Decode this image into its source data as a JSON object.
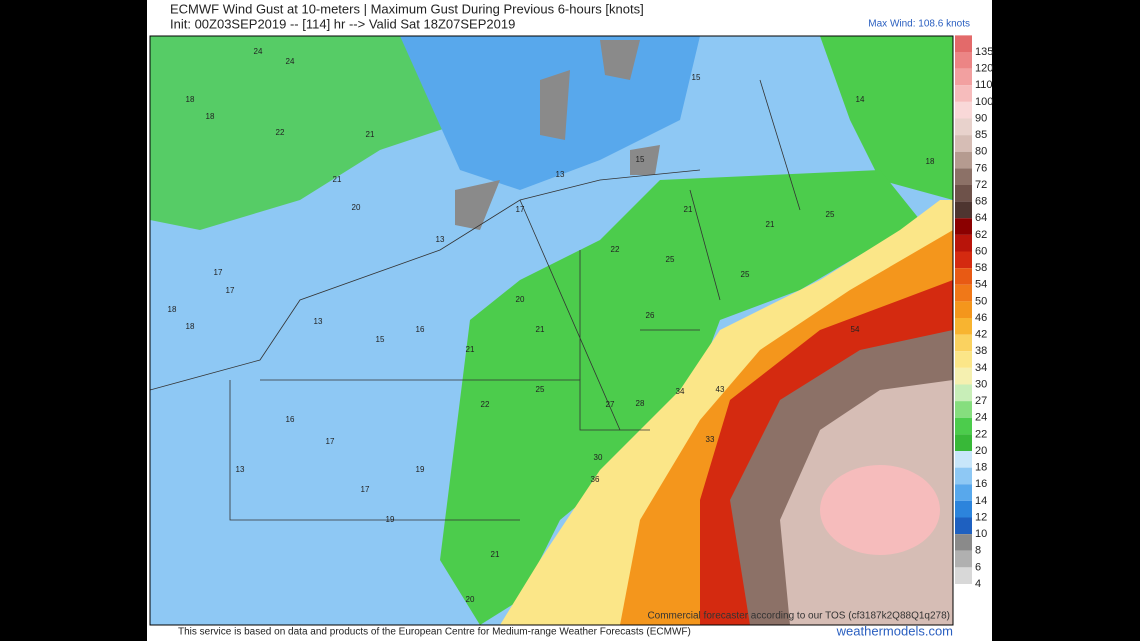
{
  "header": {
    "title": "ECMWF Wind Gust at 10-meters | Maximum Gust During Previous 6-hours [knots]",
    "init": "Init: 00Z03SEP2019 -- [114] hr --> Valid Sat 18Z07SEP2019",
    "max_wind": "Max Wind: 108.6 knots"
  },
  "colorbar": {
    "labels": [
      135,
      120,
      110,
      100,
      90,
      85,
      80,
      76,
      72,
      68,
      64,
      62,
      60,
      58,
      54,
      50,
      46,
      42,
      38,
      34,
      30,
      27,
      24,
      22,
      20,
      18,
      16,
      14,
      12,
      10,
      8,
      6,
      4
    ],
    "colors": [
      "#e36a6a",
      "#ec8585",
      "#f2a0a0",
      "#f6bcbc",
      "#f9d8d8",
      "#e8d2cc",
      "#d6bdb5",
      "#b59b90",
      "#8c7167",
      "#6e524a",
      "#4e3530",
      "#8b0000",
      "#b8140a",
      "#d42a10",
      "#e85a14",
      "#f07818",
      "#f4961c",
      "#f8b430",
      "#fad260",
      "#fbe688",
      "#f5f0b0",
      "#c8eeb8",
      "#86de7e",
      "#4ccc4c",
      "#38b838",
      "#c8e6fa",
      "#8ec8f4",
      "#58a8ec",
      "#2c84dc",
      "#1e60c0",
      "#8a8a8a",
      "#b0b0b0",
      "#d8d8d8"
    ]
  },
  "map": {
    "labels": [
      24,
      24,
      18,
      22,
      21,
      21,
      20,
      17,
      17,
      18,
      18,
      13,
      15,
      16,
      21,
      20,
      21,
      22,
      25,
      27,
      28,
      34,
      43,
      33,
      30,
      36,
      54,
      26,
      25,
      21,
      25,
      25,
      16,
      17,
      13,
      17,
      19,
      21,
      20,
      19,
      18,
      15,
      15,
      22,
      21,
      18,
      14,
      13,
      17,
      13
    ],
    "watermark": "Commercial forecaster according to our TOS (cf3187k2Q88Q1q278)"
  },
  "footer": {
    "attribution": "This service is based on data and products of the European Centre for Medium-range Weather Forecasts (ECMWF)",
    "site": "weathermodels.com"
  }
}
